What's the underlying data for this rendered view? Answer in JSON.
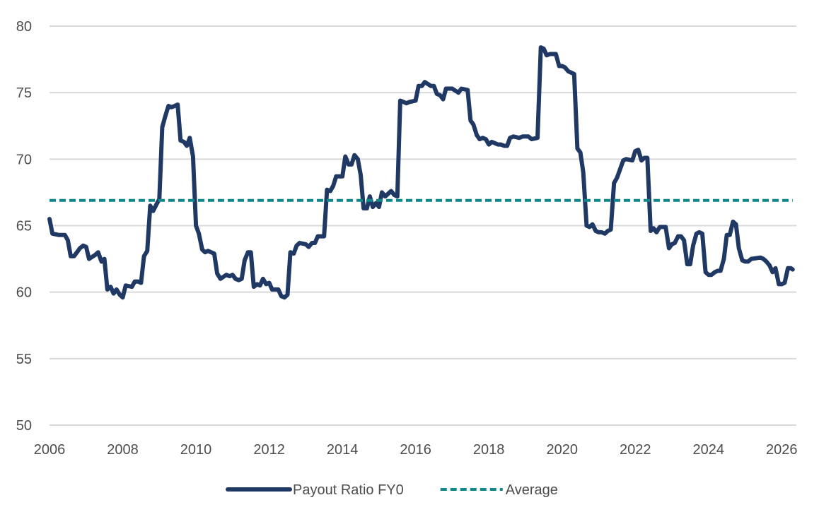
{
  "chart_data": {
    "type": "line",
    "title": "",
    "xlabel": "",
    "ylabel": "",
    "xlim": [
      2006,
      2026.4
    ],
    "ylim": [
      50,
      80
    ],
    "x_ticks": [
      "2006",
      "2008",
      "2010",
      "2012",
      "2014",
      "2016",
      "2018",
      "2020",
      "2022",
      "2024",
      "2026"
    ],
    "y_ticks": [
      "50",
      "55",
      "60",
      "65",
      "70",
      "75",
      "80"
    ],
    "grid": "horizontal",
    "legend_position": "bottom",
    "series": [
      {
        "name": "Payout Ratio FY0",
        "color": "#1f3864",
        "style": "solid",
        "points": [
          [
            2006.0,
            65.5
          ],
          [
            2006.08,
            64.4
          ],
          [
            2006.25,
            64.3
          ],
          [
            2006.42,
            64.3
          ],
          [
            2006.5,
            63.9
          ],
          [
            2006.58,
            62.7
          ],
          [
            2006.67,
            62.7
          ],
          [
            2006.83,
            63.3
          ],
          [
            2006.92,
            63.5
          ],
          [
            2007.0,
            63.4
          ],
          [
            2007.08,
            62.5
          ],
          [
            2007.25,
            62.8
          ],
          [
            2007.33,
            63.0
          ],
          [
            2007.42,
            62.3
          ],
          [
            2007.5,
            62.5
          ],
          [
            2007.58,
            60.2
          ],
          [
            2007.67,
            60.4
          ],
          [
            2007.75,
            59.9
          ],
          [
            2007.83,
            60.2
          ],
          [
            2007.92,
            59.8
          ],
          [
            2008.0,
            59.6
          ],
          [
            2008.08,
            60.5
          ],
          [
            2008.25,
            60.4
          ],
          [
            2008.33,
            60.8
          ],
          [
            2008.42,
            60.8
          ],
          [
            2008.5,
            60.7
          ],
          [
            2008.58,
            62.7
          ],
          [
            2008.67,
            63.1
          ],
          [
            2008.75,
            66.5
          ],
          [
            2008.83,
            66.1
          ],
          [
            2008.92,
            66.6
          ],
          [
            2009.0,
            67.0
          ],
          [
            2009.08,
            72.4
          ],
          [
            2009.17,
            73.3
          ],
          [
            2009.25,
            74.0
          ],
          [
            2009.33,
            73.9
          ],
          [
            2009.42,
            74.0
          ],
          [
            2009.5,
            74.1
          ],
          [
            2009.58,
            71.4
          ],
          [
            2009.67,
            71.3
          ],
          [
            2009.75,
            71.0
          ],
          [
            2009.83,
            71.6
          ],
          [
            2009.92,
            70.2
          ],
          [
            2010.0,
            65.0
          ],
          [
            2010.08,
            64.4
          ],
          [
            2010.17,
            63.2
          ],
          [
            2010.25,
            63.0
          ],
          [
            2010.33,
            63.1
          ],
          [
            2010.5,
            62.9
          ],
          [
            2010.58,
            61.4
          ],
          [
            2010.67,
            61.0
          ],
          [
            2010.83,
            61.3
          ],
          [
            2010.92,
            61.2
          ],
          [
            2011.0,
            61.3
          ],
          [
            2011.08,
            61.0
          ],
          [
            2011.17,
            60.9
          ],
          [
            2011.25,
            61.0
          ],
          [
            2011.33,
            62.4
          ],
          [
            2011.42,
            63.0
          ],
          [
            2011.5,
            63.0
          ],
          [
            2011.58,
            60.4
          ],
          [
            2011.67,
            60.6
          ],
          [
            2011.75,
            60.5
          ],
          [
            2011.83,
            61.0
          ],
          [
            2011.92,
            60.6
          ],
          [
            2012.0,
            60.7
          ],
          [
            2012.08,
            60.2
          ],
          [
            2012.25,
            60.2
          ],
          [
            2012.33,
            59.7
          ],
          [
            2012.42,
            59.6
          ],
          [
            2012.5,
            59.8
          ],
          [
            2012.58,
            63.0
          ],
          [
            2012.67,
            62.9
          ],
          [
            2012.75,
            63.5
          ],
          [
            2012.83,
            63.7
          ],
          [
            2013.0,
            63.6
          ],
          [
            2013.08,
            63.4
          ],
          [
            2013.17,
            63.7
          ],
          [
            2013.25,
            63.7
          ],
          [
            2013.33,
            64.2
          ],
          [
            2013.5,
            64.2
          ],
          [
            2013.58,
            67.7
          ],
          [
            2013.67,
            67.6
          ],
          [
            2013.75,
            68.0
          ],
          [
            2013.83,
            68.7
          ],
          [
            2014.0,
            68.7
          ],
          [
            2014.08,
            70.2
          ],
          [
            2014.17,
            69.6
          ],
          [
            2014.25,
            69.6
          ],
          [
            2014.33,
            70.3
          ],
          [
            2014.42,
            70.0
          ],
          [
            2014.5,
            68.8
          ],
          [
            2014.58,
            66.3
          ],
          [
            2014.67,
            66.3
          ],
          [
            2014.75,
            67.2
          ],
          [
            2014.83,
            66.4
          ],
          [
            2014.92,
            66.7
          ],
          [
            2015.0,
            66.4
          ],
          [
            2015.08,
            67.5
          ],
          [
            2015.17,
            67.2
          ],
          [
            2015.33,
            67.6
          ],
          [
            2015.42,
            67.3
          ],
          [
            2015.5,
            67.2
          ],
          [
            2015.58,
            74.4
          ],
          [
            2015.67,
            74.3
          ],
          [
            2015.75,
            74.2
          ],
          [
            2015.83,
            74.3
          ],
          [
            2016.0,
            74.4
          ],
          [
            2016.08,
            75.5
          ],
          [
            2016.17,
            75.5
          ],
          [
            2016.25,
            75.8
          ],
          [
            2016.42,
            75.5
          ],
          [
            2016.5,
            75.5
          ],
          [
            2016.58,
            74.9
          ],
          [
            2016.67,
            74.8
          ],
          [
            2016.75,
            74.5
          ],
          [
            2016.83,
            75.3
          ],
          [
            2017.0,
            75.3
          ],
          [
            2017.17,
            75.0
          ],
          [
            2017.25,
            75.3
          ],
          [
            2017.42,
            75.2
          ],
          [
            2017.5,
            72.9
          ],
          [
            2017.58,
            72.6
          ],
          [
            2017.67,
            71.8
          ],
          [
            2017.75,
            71.5
          ],
          [
            2017.83,
            71.6
          ],
          [
            2017.92,
            71.5
          ],
          [
            2018.0,
            71.1
          ],
          [
            2018.08,
            71.3
          ],
          [
            2018.25,
            71.1
          ],
          [
            2018.33,
            71.1
          ],
          [
            2018.42,
            71.0
          ],
          [
            2018.5,
            71.0
          ],
          [
            2018.58,
            71.6
          ],
          [
            2018.67,
            71.7
          ],
          [
            2018.83,
            71.6
          ],
          [
            2018.92,
            71.7
          ],
          [
            2019.08,
            71.7
          ],
          [
            2019.17,
            71.5
          ],
          [
            2019.33,
            71.6
          ],
          [
            2019.42,
            78.4
          ],
          [
            2019.5,
            78.3
          ],
          [
            2019.58,
            77.8
          ],
          [
            2019.67,
            77.9
          ],
          [
            2019.75,
            77.9
          ],
          [
            2019.83,
            77.9
          ],
          [
            2019.92,
            77.0
          ],
          [
            2020.0,
            77.0
          ],
          [
            2020.08,
            76.9
          ],
          [
            2020.17,
            76.6
          ],
          [
            2020.25,
            76.5
          ],
          [
            2020.33,
            76.4
          ],
          [
            2020.42,
            70.8
          ],
          [
            2020.5,
            70.5
          ],
          [
            2020.58,
            69.0
          ],
          [
            2020.67,
            65.0
          ],
          [
            2020.75,
            64.9
          ],
          [
            2020.83,
            65.1
          ],
          [
            2020.92,
            64.6
          ],
          [
            2021.0,
            64.5
          ],
          [
            2021.08,
            64.5
          ],
          [
            2021.17,
            64.4
          ],
          [
            2021.25,
            64.6
          ],
          [
            2021.33,
            64.7
          ],
          [
            2021.42,
            68.2
          ],
          [
            2021.5,
            68.6
          ],
          [
            2021.58,
            69.2
          ],
          [
            2021.67,
            69.9
          ],
          [
            2021.75,
            70.0
          ],
          [
            2021.92,
            69.9
          ],
          [
            2022.0,
            70.6
          ],
          [
            2022.08,
            70.7
          ],
          [
            2022.17,
            69.9
          ],
          [
            2022.25,
            70.1
          ],
          [
            2022.33,
            70.1
          ],
          [
            2022.42,
            64.6
          ],
          [
            2022.5,
            64.8
          ],
          [
            2022.58,
            64.5
          ],
          [
            2022.67,
            64.9
          ],
          [
            2022.83,
            64.9
          ],
          [
            2022.92,
            63.3
          ],
          [
            2023.0,
            63.6
          ],
          [
            2023.08,
            63.7
          ],
          [
            2023.17,
            64.2
          ],
          [
            2023.25,
            64.2
          ],
          [
            2023.33,
            63.9
          ],
          [
            2023.42,
            62.1
          ],
          [
            2023.5,
            62.1
          ],
          [
            2023.58,
            63.5
          ],
          [
            2023.67,
            64.4
          ],
          [
            2023.75,
            64.5
          ],
          [
            2023.83,
            64.4
          ],
          [
            2023.92,
            61.5
          ],
          [
            2024.0,
            61.3
          ],
          [
            2024.08,
            61.3
          ],
          [
            2024.17,
            61.5
          ],
          [
            2024.25,
            61.6
          ],
          [
            2024.33,
            61.6
          ],
          [
            2024.42,
            62.5
          ],
          [
            2024.5,
            64.3
          ],
          [
            2024.58,
            64.3
          ],
          [
            2024.67,
            65.3
          ],
          [
            2024.75,
            65.1
          ],
          [
            2024.83,
            63.3
          ],
          [
            2024.92,
            62.4
          ],
          [
            2025.0,
            62.3
          ],
          [
            2025.08,
            62.3
          ],
          [
            2025.17,
            62.5
          ],
          [
            2025.42,
            62.6
          ],
          [
            2025.5,
            62.5
          ],
          [
            2025.58,
            62.3
          ],
          [
            2025.67,
            62.0
          ],
          [
            2025.75,
            61.5
          ],
          [
            2025.83,
            61.8
          ],
          [
            2025.92,
            60.6
          ],
          [
            2026.0,
            60.6
          ],
          [
            2026.08,
            60.7
          ],
          [
            2026.17,
            61.8
          ],
          [
            2026.25,
            61.8
          ],
          [
            2026.3,
            61.7
          ]
        ]
      },
      {
        "name": "Average",
        "color": "#12878a",
        "style": "dashed",
        "points": [
          [
            2006.0,
            66.9
          ],
          [
            2026.3,
            66.9
          ]
        ]
      }
    ]
  }
}
